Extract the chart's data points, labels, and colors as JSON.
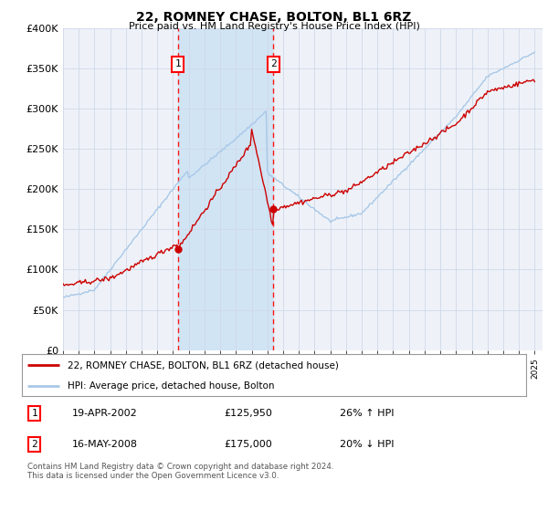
{
  "title": "22, ROMNEY CHASE, BOLTON, BL1 6RZ",
  "subtitle": "Price paid vs. HM Land Registry's House Price Index (HPI)",
  "ylim": [
    0,
    400000
  ],
  "yticks": [
    0,
    50000,
    100000,
    150000,
    200000,
    250000,
    300000,
    350000,
    400000
  ],
  "ytick_labels": [
    "£0",
    "£50K",
    "£100K",
    "£150K",
    "£200K",
    "£250K",
    "£300K",
    "£350K",
    "£400K"
  ],
  "hpi_color": "#a8c8e8",
  "price_color": "#cc0000",
  "sale1_date": 2002.3,
  "sale1_price": 125950,
  "sale2_date": 2008.37,
  "sale2_price": 175000,
  "marker1_label": "19-APR-2002",
  "marker1_price": "£125,950",
  "marker1_hpi": "26% ↑ HPI",
  "marker2_label": "16-MAY-2008",
  "marker2_price": "£175,000",
  "marker2_hpi": "20% ↓ HPI",
  "legend_line1": "22, ROMNEY CHASE, BOLTON, BL1 6RZ (detached house)",
  "legend_line2": "HPI: Average price, detached house, Bolton",
  "footer": "Contains HM Land Registry data © Crown copyright and database right 2024.\nThis data is licensed under the Open Government Licence v3.0.",
  "bg_color": "#ffffff",
  "plot_bg_color": "#eef2f8",
  "grid_color": "#d0d8e8",
  "shade_color": "#d0e4f4"
}
